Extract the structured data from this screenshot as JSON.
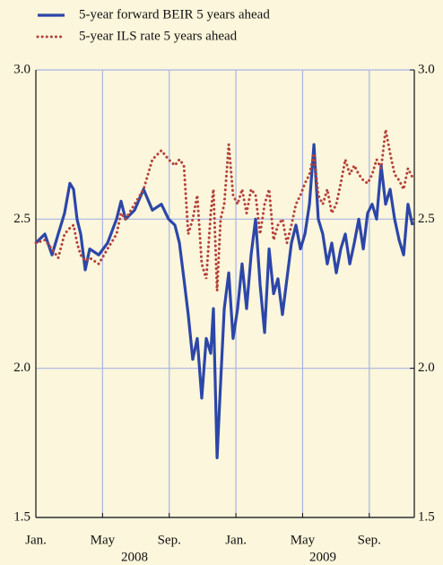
{
  "chart_data": {
    "type": "line",
    "x": [
      0,
      0.54,
      0.97,
      1.34,
      1.72,
      2.04,
      2.26,
      2.47,
      2.69,
      2.96,
      3.23,
      3.77,
      4.3,
      4.84,
      5.11,
      5.38,
      5.92,
      6.46,
      6.99,
      7.53,
      7.96,
      8.34,
      8.61,
      8.88,
      9.14,
      9.41,
      9.68,
      9.95,
      10.22,
      10.49,
      10.65,
      10.87,
      11.08,
      11.3,
      11.57,
      11.83,
      12.1,
      12.37,
      12.64,
      12.91,
      13.18,
      13.45,
      13.72,
      13.99,
      14.26,
      14.52,
      14.79,
      15.06,
      15.33,
      15.6,
      15.87,
      16.14,
      16.41,
      16.68,
      16.94,
      17.21,
      17.48,
      17.75,
      18.02,
      18.29,
      18.56,
      18.83,
      19.1,
      19.37,
      19.64,
      19.9,
      20.17,
      20.44,
      20.71,
      20.98,
      21.25,
      21.52,
      21.79,
      22.06,
      22.32,
      22.59
    ],
    "series": [
      {
        "name": "5-year forward BEIR 5 years ahead",
        "color": "#2c46a8",
        "style": "solid",
        "values": [
          2.42,
          2.45,
          2.38,
          2.45,
          2.52,
          2.62,
          2.6,
          2.5,
          2.45,
          2.33,
          2.4,
          2.38,
          2.42,
          2.5,
          2.56,
          2.5,
          2.53,
          2.6,
          2.53,
          2.55,
          2.5,
          2.48,
          2.42,
          2.3,
          2.18,
          2.03,
          2.1,
          1.9,
          2.1,
          2.05,
          2.2,
          1.7,
          1.95,
          2.2,
          2.32,
          2.1,
          2.2,
          2.35,
          2.2,
          2.38,
          2.5,
          2.28,
          2.12,
          2.4,
          2.25,
          2.3,
          2.18,
          2.3,
          2.42,
          2.48,
          2.4,
          2.45,
          2.55,
          2.75,
          2.5,
          2.45,
          2.35,
          2.42,
          2.32,
          2.4,
          2.45,
          2.35,
          2.42,
          2.5,
          2.4,
          2.52,
          2.55,
          2.5,
          2.68,
          2.55,
          2.6,
          2.5,
          2.43,
          2.38,
          2.55,
          2.48
        ]
      },
      {
        "name": "5-year ILS rate 5 years ahead",
        "color": "#b5413a",
        "style": "dotted",
        "values": [
          2.42,
          2.43,
          2.4,
          2.37,
          2.45,
          2.47,
          2.48,
          2.42,
          2.38,
          2.36,
          2.37,
          2.35,
          2.4,
          2.45,
          2.52,
          2.5,
          2.55,
          2.6,
          2.7,
          2.73,
          2.7,
          2.68,
          2.7,
          2.68,
          2.45,
          2.5,
          2.58,
          2.35,
          2.3,
          2.52,
          2.6,
          2.26,
          2.5,
          2.55,
          2.75,
          2.58,
          2.55,
          2.6,
          2.52,
          2.6,
          2.58,
          2.45,
          2.55,
          2.6,
          2.43,
          2.48,
          2.5,
          2.42,
          2.48,
          2.55,
          2.58,
          2.62,
          2.65,
          2.72,
          2.58,
          2.55,
          2.6,
          2.52,
          2.55,
          2.62,
          2.7,
          2.65,
          2.68,
          2.65,
          2.63,
          2.62,
          2.65,
          2.7,
          2.67,
          2.8,
          2.72,
          2.65,
          2.63,
          2.6,
          2.67,
          2.64
        ]
      }
    ],
    "xlim": [
      0,
      22.7
    ],
    "xticks": [
      {
        "value": 0,
        "label": "Jan."
      },
      {
        "value": 4,
        "label": "May"
      },
      {
        "value": 8,
        "label": "Sep."
      },
      {
        "value": 12,
        "label": "Jan."
      },
      {
        "value": 16,
        "label": "May"
      },
      {
        "value": 20,
        "label": "Sep."
      }
    ],
    "x_group_labels": [
      "2008",
      "2009"
    ],
    "ylim": [
      1.5,
      3.0
    ],
    "yticks": [
      1.5,
      {
        "value": 2,
        "label": "2.0"
      },
      2.5,
      {
        "value": 3,
        "label": "3.0"
      }
    ],
    "y2lim": [
      1.5,
      3.0
    ],
    "y2ticks": [
      1.5,
      {
        "value": 2,
        "label": "2.0"
      },
      2.5,
      {
        "value": 3,
        "label": "3.0"
      }
    ],
    "grid": true,
    "legend": "top-left"
  }
}
